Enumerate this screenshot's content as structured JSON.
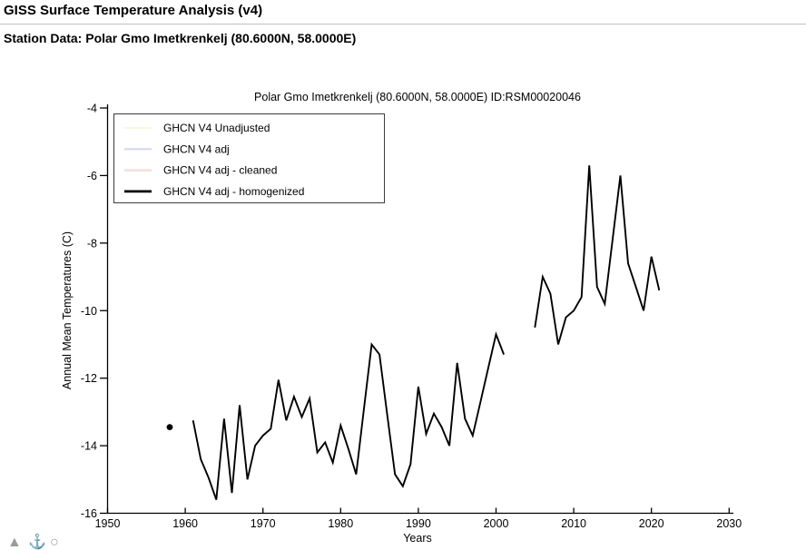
{
  "page": {
    "header_title": "GISS Surface Temperature Analysis (v4)",
    "subtitle": "Station Data: Polar Gmo Imetkrenkelj (80.6000N, 58.0000E)"
  },
  "toolbar_icons": [
    {
      "name": "triangle-icon",
      "glyph": "▲"
    },
    {
      "name": "anchor-icon",
      "glyph": "⚓"
    },
    {
      "name": "circle-icon",
      "glyph": "○"
    }
  ],
  "chart_data": {
    "type": "line",
    "title": "Polar Gmo Imetkrenkelj (80.6000N, 58.0000E) ID:RSM00020046",
    "xlabel": "Years",
    "ylabel": "Annual Mean Temperatures (C)",
    "xlim": [
      1950,
      2030
    ],
    "ylim": [
      -16,
      -4
    ],
    "xticks": [
      1950,
      1960,
      1970,
      1980,
      1990,
      2000,
      2010,
      2020,
      2030
    ],
    "yticks": [
      -16,
      -14,
      -12,
      -10,
      -8,
      -6,
      -4
    ],
    "grid": false,
    "legend_position": "top-left",
    "axis_color": "#000000",
    "series": [
      {
        "name": "GHCN V4 Unadjusted",
        "color": "#f7f7e0",
        "swatch_width": 2.2,
        "segments": [],
        "isolated_points": []
      },
      {
        "name": "GHCN V4 adj",
        "color": "#d6d6f0",
        "swatch_width": 2.2,
        "segments": [],
        "isolated_points": []
      },
      {
        "name": "GHCN V4 adj - cleaned",
        "color": "#f5dbdb",
        "swatch_width": 2.2,
        "segments": [],
        "isolated_points": []
      },
      {
        "name": "GHCN V4 adj - homogenized",
        "color": "#000000",
        "swatch_width": 2.8,
        "line_width": 1.9,
        "segments": [
          [
            [
              1961,
              -13.25
            ],
            [
              1962,
              -14.4
            ],
            [
              1963,
              -14.95
            ],
            [
              1964,
              -15.6
            ],
            [
              1965,
              -13.2
            ],
            [
              1966,
              -15.4
            ],
            [
              1967,
              -12.8
            ],
            [
              1968,
              -15.0
            ],
            [
              1969,
              -14.0
            ],
            [
              1970,
              -13.7
            ],
            [
              1971,
              -13.5
            ],
            [
              1972,
              -12.05
            ],
            [
              1973,
              -13.25
            ],
            [
              1974,
              -12.55
            ],
            [
              1975,
              -13.15
            ],
            [
              1976,
              -12.6
            ],
            [
              1977,
              -14.2
            ],
            [
              1978,
              -13.9
            ],
            [
              1979,
              -14.5
            ],
            [
              1980,
              -13.4
            ],
            [
              1981,
              -14.1
            ],
            [
              1982,
              -14.85
            ],
            [
              1983,
              -12.9
            ],
            [
              1984,
              -11.0
            ],
            [
              1985,
              -11.3
            ],
            [
              1986,
              -13.1
            ],
            [
              1987,
              -14.85
            ],
            [
              1988,
              -15.2
            ],
            [
              1989,
              -14.55
            ],
            [
              1990,
              -12.25
            ],
            [
              1991,
              -13.65
            ],
            [
              1992,
              -13.05
            ],
            [
              1993,
              -13.45
            ],
            [
              1994,
              -14.0
            ],
            [
              1995,
              -11.55
            ],
            [
              1996,
              -13.2
            ],
            [
              1997,
              -13.7
            ],
            [
              1998,
              -12.7
            ],
            [
              1999,
              -11.7
            ],
            [
              2000,
              -10.7
            ],
            [
              2001,
              -11.3
            ]
          ],
          [
            [
              2005,
              -10.5
            ],
            [
              2006,
              -9.0
            ],
            [
              2007,
              -9.5
            ],
            [
              2008,
              -11.0
            ],
            [
              2009,
              -10.2
            ],
            [
              2010,
              -10.0
            ],
            [
              2011,
              -9.6
            ],
            [
              2012,
              -5.7
            ],
            [
              2013,
              -9.3
            ],
            [
              2014,
              -9.8
            ],
            [
              2015,
              -7.9
            ],
            [
              2016,
              -6.0
            ],
            [
              2017,
              -8.6
            ],
            [
              2018,
              -9.3
            ],
            [
              2019,
              -10.0
            ],
            [
              2020,
              -8.4
            ],
            [
              2021,
              -9.4
            ]
          ]
        ],
        "isolated_points": [
          [
            1958,
            -13.45
          ]
        ]
      }
    ]
  }
}
